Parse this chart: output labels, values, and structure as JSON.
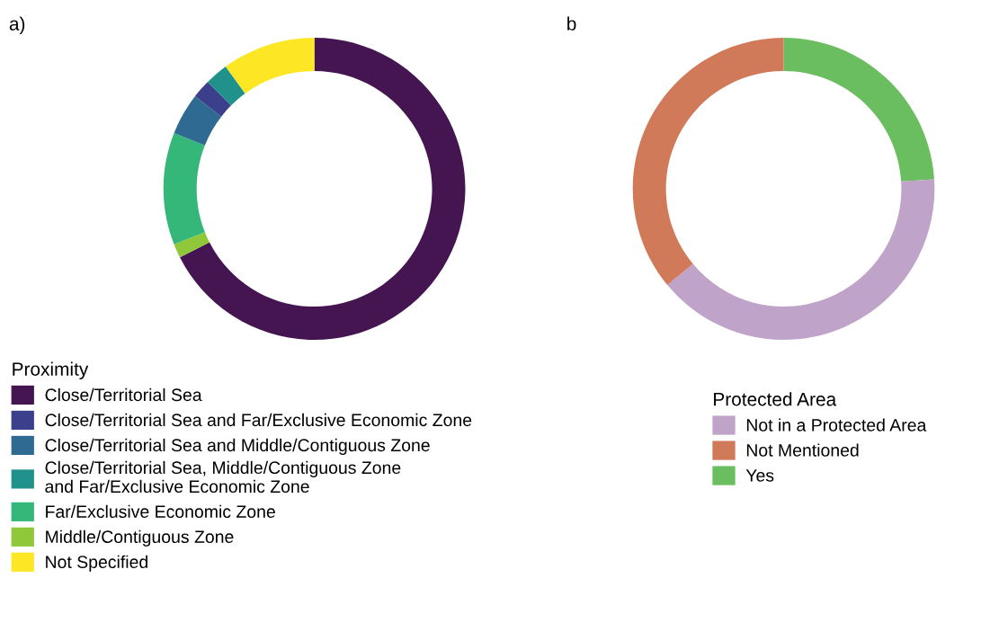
{
  "chart_data": [
    {
      "type": "donut",
      "title": "a)",
      "legend_title": "Proximity",
      "legend": "bottom left",
      "categories": [
        "Close/Territorial Sea",
        "Middle/Contiguous Zone",
        "Far/Exclusive Economic Zone",
        "Close/Territorial Sea and Middle/Contiguous Zone",
        "Close/Territorial Sea and Far/Exclusive Economic Zone",
        "Close/Territorial Sea, Middle/Contiguous Zone\nand Far/Exclusive Economic Zone",
        "Not Specified"
      ],
      "values": [
        67.5,
        1.5,
        12,
        4.5,
        2,
        2.5,
        10
      ],
      "colors": [
        "#451552",
        "#8fc93a",
        "#35b779",
        "#2e6a91",
        "#3b3f8c",
        "#21918c",
        "#fde725"
      ]
    },
    {
      "type": "donut",
      "title": "b",
      "legend_title": "Protected Area",
      "legend": "bottom right",
      "categories": [
        "Yes",
        "Not in a Protected Area",
        "Not Mentioned"
      ],
      "values": [
        24,
        40,
        36
      ],
      "colors": [
        "#6abe5f",
        "#c0a3c9",
        "#d07a5a"
      ]
    }
  ]
}
